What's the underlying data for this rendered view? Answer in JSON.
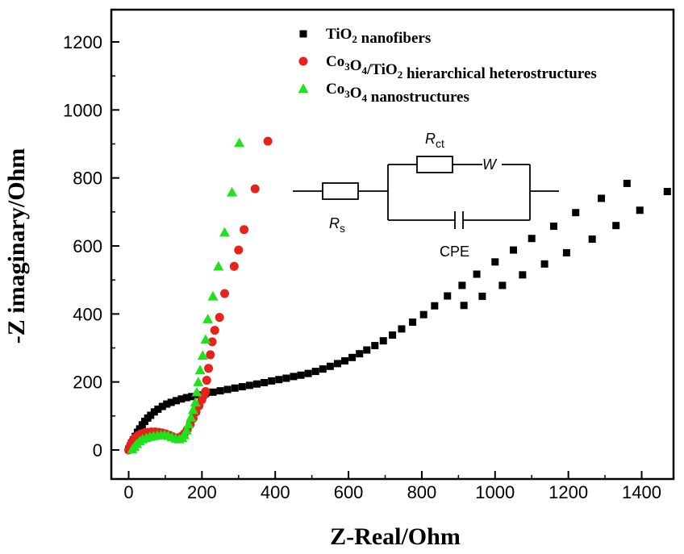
{
  "chart_data": {
    "type": "scatter",
    "xlabel": "Z-Real/Ohm",
    "ylabel": "-Z imaginary/Ohm",
    "xlim": [
      -50,
      1500
    ],
    "ylim": [
      -50,
      1300
    ],
    "x_ticks": [
      "0",
      "200",
      "400",
      "600",
      "800",
      "1000",
      "1200",
      "1400"
    ],
    "y_ticks": [
      "0",
      "200",
      "400",
      "600",
      "800",
      "1000",
      "1200"
    ],
    "legend_position": "top-center",
    "series": [
      {
        "name_parts": [
          {
            "t": "TiO"
          },
          {
            "t": "2",
            "sub": true
          },
          {
            "t": " nanofibers"
          }
        ],
        "marker": "square",
        "color": "#000000",
        "points": [
          [
            0,
            2
          ],
          [
            4,
            10
          ],
          [
            8,
            20
          ],
          [
            13,
            30
          ],
          [
            18,
            40
          ],
          [
            24,
            52
          ],
          [
            30,
            62
          ],
          [
            37,
            74
          ],
          [
            44,
            84
          ],
          [
            52,
            94
          ],
          [
            60,
            102
          ],
          [
            70,
            112
          ],
          [
            80,
            120
          ],
          [
            92,
            128
          ],
          [
            104,
            135
          ],
          [
            116,
            140
          ],
          [
            130,
            145
          ],
          [
            144,
            150
          ],
          [
            158,
            154
          ],
          [
            172,
            157
          ],
          [
            190,
            162
          ],
          [
            210,
            166
          ],
          [
            230,
            170
          ],
          [
            250,
            174
          ],
          [
            270,
            178
          ],
          [
            290,
            182
          ],
          [
            310,
            186
          ],
          [
            330,
            190
          ],
          [
            350,
            194
          ],
          [
            370,
            198
          ],
          [
            390,
            203
          ],
          [
            410,
            207
          ],
          [
            430,
            211
          ],
          [
            450,
            216
          ],
          [
            470,
            220
          ],
          [
            490,
            225
          ],
          [
            510,
            231
          ],
          [
            530,
            238
          ],
          [
            550,
            246
          ],
          [
            570,
            254
          ],
          [
            590,
            262
          ],
          [
            610,
            272
          ],
          [
            630,
            283
          ],
          [
            650,
            294
          ],
          [
            672,
            307
          ],
          [
            695,
            321
          ],
          [
            720,
            338
          ],
          [
            745,
            356
          ],
          [
            775,
            376
          ],
          [
            805,
            398
          ],
          [
            835,
            424
          ],
          [
            870,
            453
          ],
          [
            910,
            484
          ],
          [
            950,
            517
          ],
          [
            1000,
            553
          ],
          [
            1050,
            588
          ],
          [
            1100,
            622
          ],
          [
            1160,
            658
          ],
          [
            1220,
            698
          ],
          [
            1290,
            740
          ],
          [
            1360,
            784
          ],
          [
            1470,
            760
          ],
          [
            1395,
            705
          ],
          [
            1330,
            660
          ],
          [
            1265,
            620
          ],
          [
            1195,
            580
          ],
          [
            1135,
            547
          ],
          [
            1075,
            515
          ],
          [
            1020,
            484
          ],
          [
            965,
            452
          ],
          [
            915,
            425
          ]
        ]
      },
      {
        "name_parts": [
          {
            "t": "Co"
          },
          {
            "t": "3",
            "sub": true
          },
          {
            "t": "O"
          },
          {
            "t": "4",
            "sub": true
          },
          {
            "t": "/TiO"
          },
          {
            "t": "2",
            "sub": true
          },
          {
            "t": " hierarchical heterostructures"
          }
        ],
        "marker": "circle",
        "color": "#e8211b",
        "points": [
          [
            0,
            0
          ],
          [
            3,
            8
          ],
          [
            7,
            18
          ],
          [
            12,
            28
          ],
          [
            18,
            36
          ],
          [
            25,
            42
          ],
          [
            33,
            47
          ],
          [
            42,
            50
          ],
          [
            52,
            52
          ],
          [
            62,
            53
          ],
          [
            72,
            53
          ],
          [
            82,
            52
          ],
          [
            92,
            50
          ],
          [
            102,
            47
          ],
          [
            112,
            43
          ],
          [
            120,
            39
          ],
          [
            128,
            36
          ],
          [
            136,
            36
          ],
          [
            144,
            40
          ],
          [
            152,
            48
          ],
          [
            160,
            60
          ],
          [
            168,
            75
          ],
          [
            176,
            93
          ],
          [
            184,
            112
          ],
          [
            192,
            130
          ],
          [
            200,
            148
          ],
          [
            206,
            162
          ],
          [
            210,
            172
          ],
          [
            213,
            205
          ],
          [
            218,
            240
          ],
          [
            223,
            280
          ],
          [
            228,
            318
          ],
          [
            235,
            352
          ],
          [
            248,
            390
          ],
          [
            262,
            460
          ],
          [
            288,
            540
          ],
          [
            300,
            588
          ],
          [
            315,
            648
          ],
          [
            345,
            768
          ],
          [
            380,
            908
          ]
        ]
      },
      {
        "name_parts": [
          {
            "t": "Co"
          },
          {
            "t": "3",
            "sub": true
          },
          {
            "t": "O"
          },
          {
            "t": "4",
            "sub": true
          },
          {
            "t": " nanostructures"
          }
        ],
        "marker": "triangle",
        "color": "#1ee21e",
        "points": [
          [
            10,
            2
          ],
          [
            16,
            10
          ],
          [
            22,
            18
          ],
          [
            30,
            26
          ],
          [
            38,
            32
          ],
          [
            48,
            36
          ],
          [
            58,
            39
          ],
          [
            68,
            41
          ],
          [
            78,
            43
          ],
          [
            88,
            44
          ],
          [
            98,
            44
          ],
          [
            108,
            42
          ],
          [
            118,
            38
          ],
          [
            128,
            34
          ],
          [
            138,
            32
          ],
          [
            146,
            36
          ],
          [
            152,
            44
          ],
          [
            158,
            58
          ],
          [
            164,
            76
          ],
          [
            170,
            96
          ],
          [
            176,
            118
          ],
          [
            182,
            140
          ],
          [
            186,
            170
          ],
          [
            190,
            200
          ],
          [
            195,
            235
          ],
          [
            202,
            278
          ],
          [
            210,
            325
          ],
          [
            216,
            385
          ],
          [
            230,
            452
          ],
          [
            245,
            540
          ],
          [
            262,
            640
          ],
          [
            282,
            758
          ],
          [
            302,
            903
          ]
        ]
      }
    ],
    "inset_circuit": {
      "labels": {
        "rs_main": "R",
        "rs_sub": "s",
        "rct_main": "R",
        "rct_sub": "ct",
        "w": "W",
        "cpe": "CPE"
      }
    }
  }
}
